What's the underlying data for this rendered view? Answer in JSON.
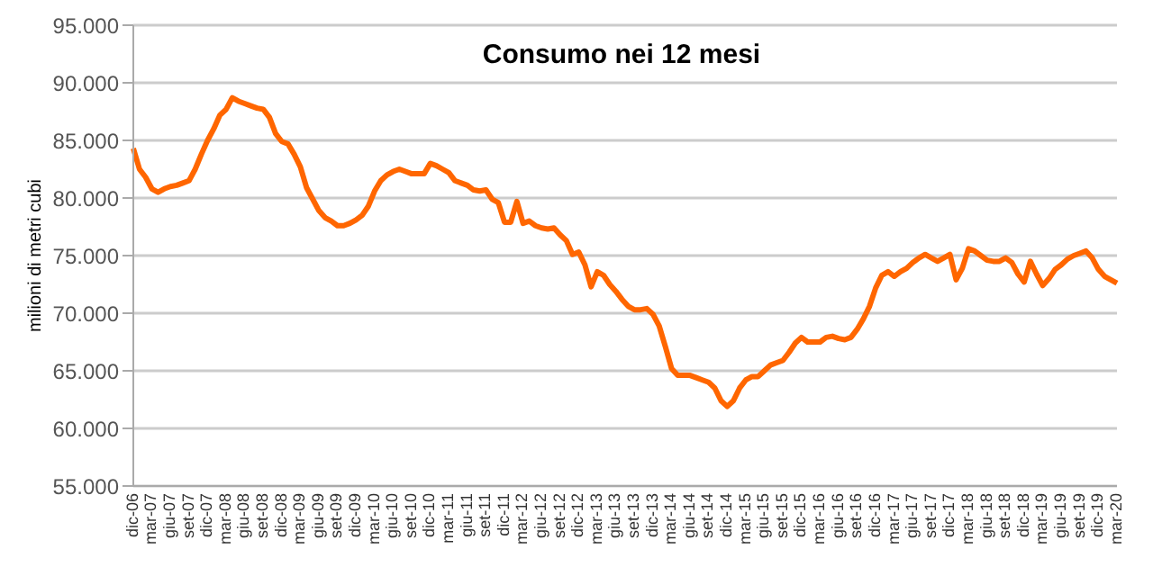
{
  "chart_data": {
    "type": "line",
    "title": "Consumo nei 12 mesi",
    "ylabel": "milioni di metri cubi",
    "categories": [
      "dic-06",
      null,
      null,
      "mar-07",
      null,
      null,
      "giu-07",
      null,
      null,
      "set-07",
      null,
      null,
      "dic-07",
      null,
      null,
      "mar-08",
      null,
      null,
      "giu-08",
      null,
      null,
      "set-08",
      null,
      null,
      "dic-08",
      null,
      null,
      "mar-09",
      null,
      null,
      "giu-09",
      null,
      null,
      "set-09",
      null,
      null,
      "dic-09",
      null,
      null,
      "mar-10",
      null,
      null,
      "giu-10",
      null,
      null,
      "set-10",
      null,
      null,
      "dic-10",
      null,
      null,
      "mar-11",
      null,
      null,
      "giu-11",
      null,
      null,
      "set-11",
      null,
      null,
      "dic-11",
      null,
      null,
      "mar-12",
      null,
      null,
      "giu-12",
      null,
      null,
      "set-12",
      null,
      null,
      "dic-12",
      null,
      null,
      "mar-13",
      null,
      null,
      "giu-13",
      null,
      null,
      "set-13",
      null,
      null,
      "dic-13",
      null,
      null,
      "mar-14",
      null,
      null,
      "giu-14",
      null,
      null,
      "set-14",
      null,
      null,
      "dic-14",
      null,
      null,
      "mar-15",
      null,
      null,
      "giu-15",
      null,
      null,
      "set-15",
      null,
      null,
      "dic-15",
      null,
      null,
      "mar-16",
      null,
      null,
      "giu-16",
      null,
      null,
      "set-16",
      null,
      null,
      "dic-16",
      null,
      null,
      "mar-17",
      null,
      null,
      "giu-17",
      null,
      null,
      "set-17",
      null,
      null,
      "dic-17",
      null,
      null,
      "mar-18",
      null,
      null,
      "giu-18",
      null,
      null,
      "set-18",
      null,
      null,
      "dic-18",
      null,
      null,
      "mar-19",
      null,
      null,
      "giu-19",
      null,
      null,
      "set-19",
      null,
      null,
      "dic-19",
      null,
      null,
      "mar-20"
    ],
    "series": [
      {
        "color": "#ff6600",
        "values": [
          84300,
          82500,
          81800,
          80800,
          80500,
          80800,
          81000,
          81100,
          81300,
          81500,
          82500,
          83800,
          85000,
          86000,
          87200,
          87700,
          88700,
          88400,
          88200,
          88000,
          87800,
          87700,
          87000,
          85600,
          84900,
          84700,
          83800,
          82700,
          80900,
          79900,
          78900,
          78300,
          78000,
          77600,
          77600,
          77800,
          78100,
          78500,
          79300,
          80600,
          81500,
          82000,
          82300,
          82500,
          82300,
          82100,
          82100,
          82100,
          83000,
          82800,
          82500,
          82200,
          81500,
          81300,
          81100,
          80700,
          80600,
          80700,
          79900,
          79600,
          77900,
          77900,
          79700,
          77800,
          78000,
          77600,
          77400,
          77300,
          77400,
          76800,
          76300,
          75100,
          75300,
          74200,
          72300,
          73600,
          73300,
          72500,
          71900,
          71200,
          70600,
          70300,
          70300,
          70400,
          69900,
          68900,
          67100,
          65200,
          64600,
          64600,
          64600,
          64400,
          64200,
          64000,
          63500,
          62400,
          61900,
          62400,
          63500,
          64200,
          64500,
          64500,
          65000,
          65500,
          65700,
          65900,
          66600,
          67400,
          67900,
          67500,
          67500,
          67500,
          67900,
          68000,
          67800,
          67700,
          67900,
          68600,
          69500,
          70600,
          72200,
          73300,
          73600,
          73200,
          73600,
          73900,
          74400,
          74800,
          75100,
          74800,
          74500,
          74800,
          75100,
          72900,
          73900,
          75600,
          75400,
          75000,
          74600,
          74500,
          74500,
          74800,
          74400,
          73400,
          72700,
          74500,
          73400,
          72400,
          73000,
          73800,
          74200,
          74700,
          75000,
          75200,
          75400,
          74800,
          73800,
          73200,
          72900,
          72600
        ]
      }
    ],
    "ylim": [
      55000,
      95000
    ],
    "yticks": [
      {
        "value": 55000,
        "label": "55.000"
      },
      {
        "value": 60000,
        "label": "60.000"
      },
      {
        "value": 65000,
        "label": "65.000"
      },
      {
        "value": 70000,
        "label": "70.000"
      },
      {
        "value": 75000,
        "label": "75.000"
      },
      {
        "value": 80000,
        "label": "80.000"
      },
      {
        "value": 85000,
        "label": "85.000"
      },
      {
        "value": 90000,
        "label": "90.000"
      },
      {
        "value": 95000,
        "label": "95.000"
      }
    ],
    "grid": "y",
    "legend": false
  }
}
